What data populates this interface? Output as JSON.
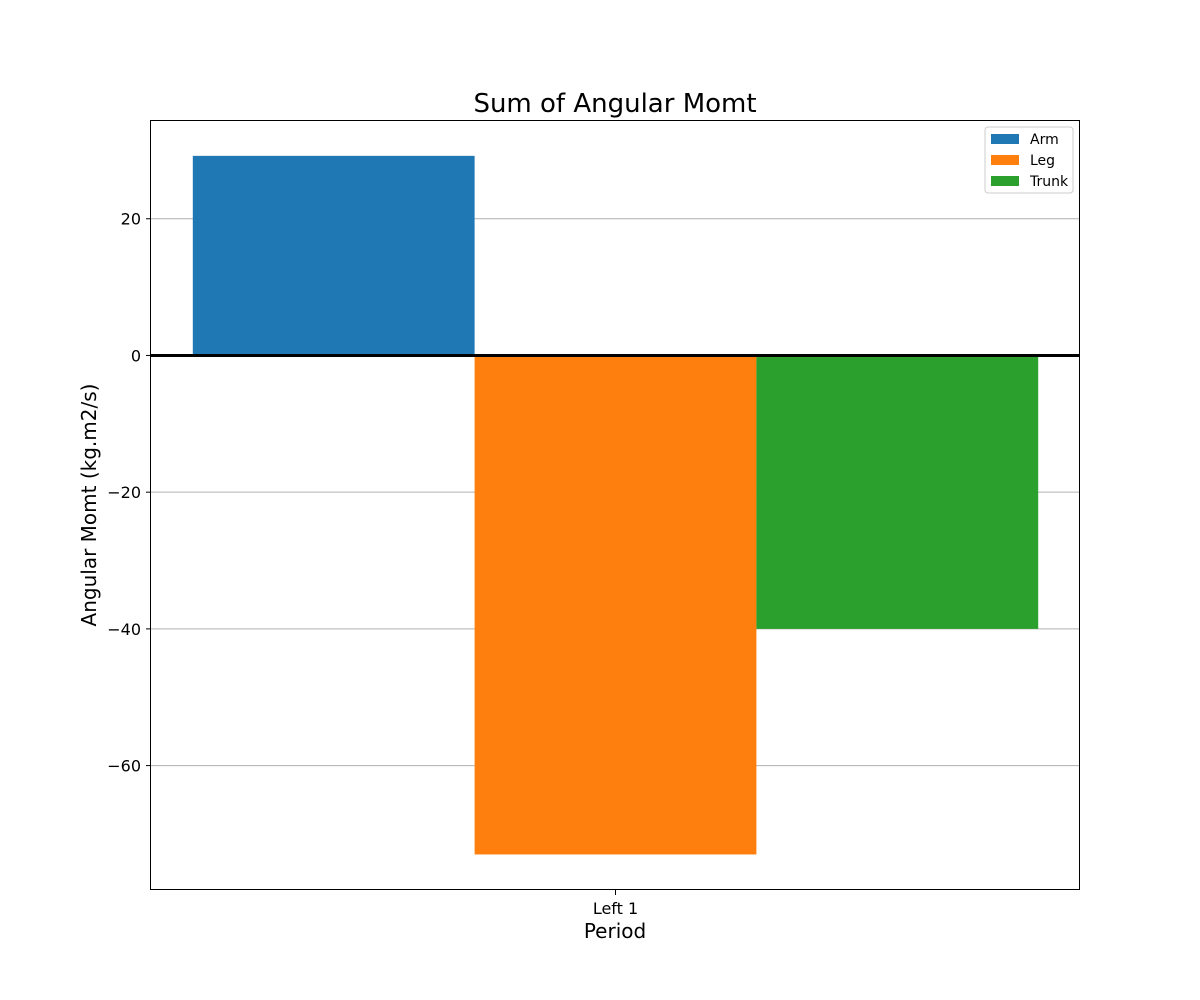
{
  "chart_data": {
    "type": "bar",
    "title": "Sum of Angular Momt",
    "xlabel": "Period",
    "ylabel": "Angular Momt (kg.m2/s)",
    "categories": [
      "Left 1"
    ],
    "series": [
      {
        "name": "Arm",
        "values": [
          29.2
        ],
        "color": "#1f77b4"
      },
      {
        "name": "Leg",
        "values": [
          -73.0
        ],
        "color": "#ff7f0e"
      },
      {
        "name": "Trunk",
        "values": [
          -40.0
        ],
        "color": "#2ca02c"
      }
    ],
    "ylim": [
      -78.2,
      34.3
    ],
    "yticks": [
      20,
      0,
      -20,
      -40,
      -60
    ],
    "ytick_labels": [
      "20",
      "0",
      "−20",
      "−40",
      "−60"
    ],
    "grid": "horizontal",
    "legend_position": "top-right"
  }
}
